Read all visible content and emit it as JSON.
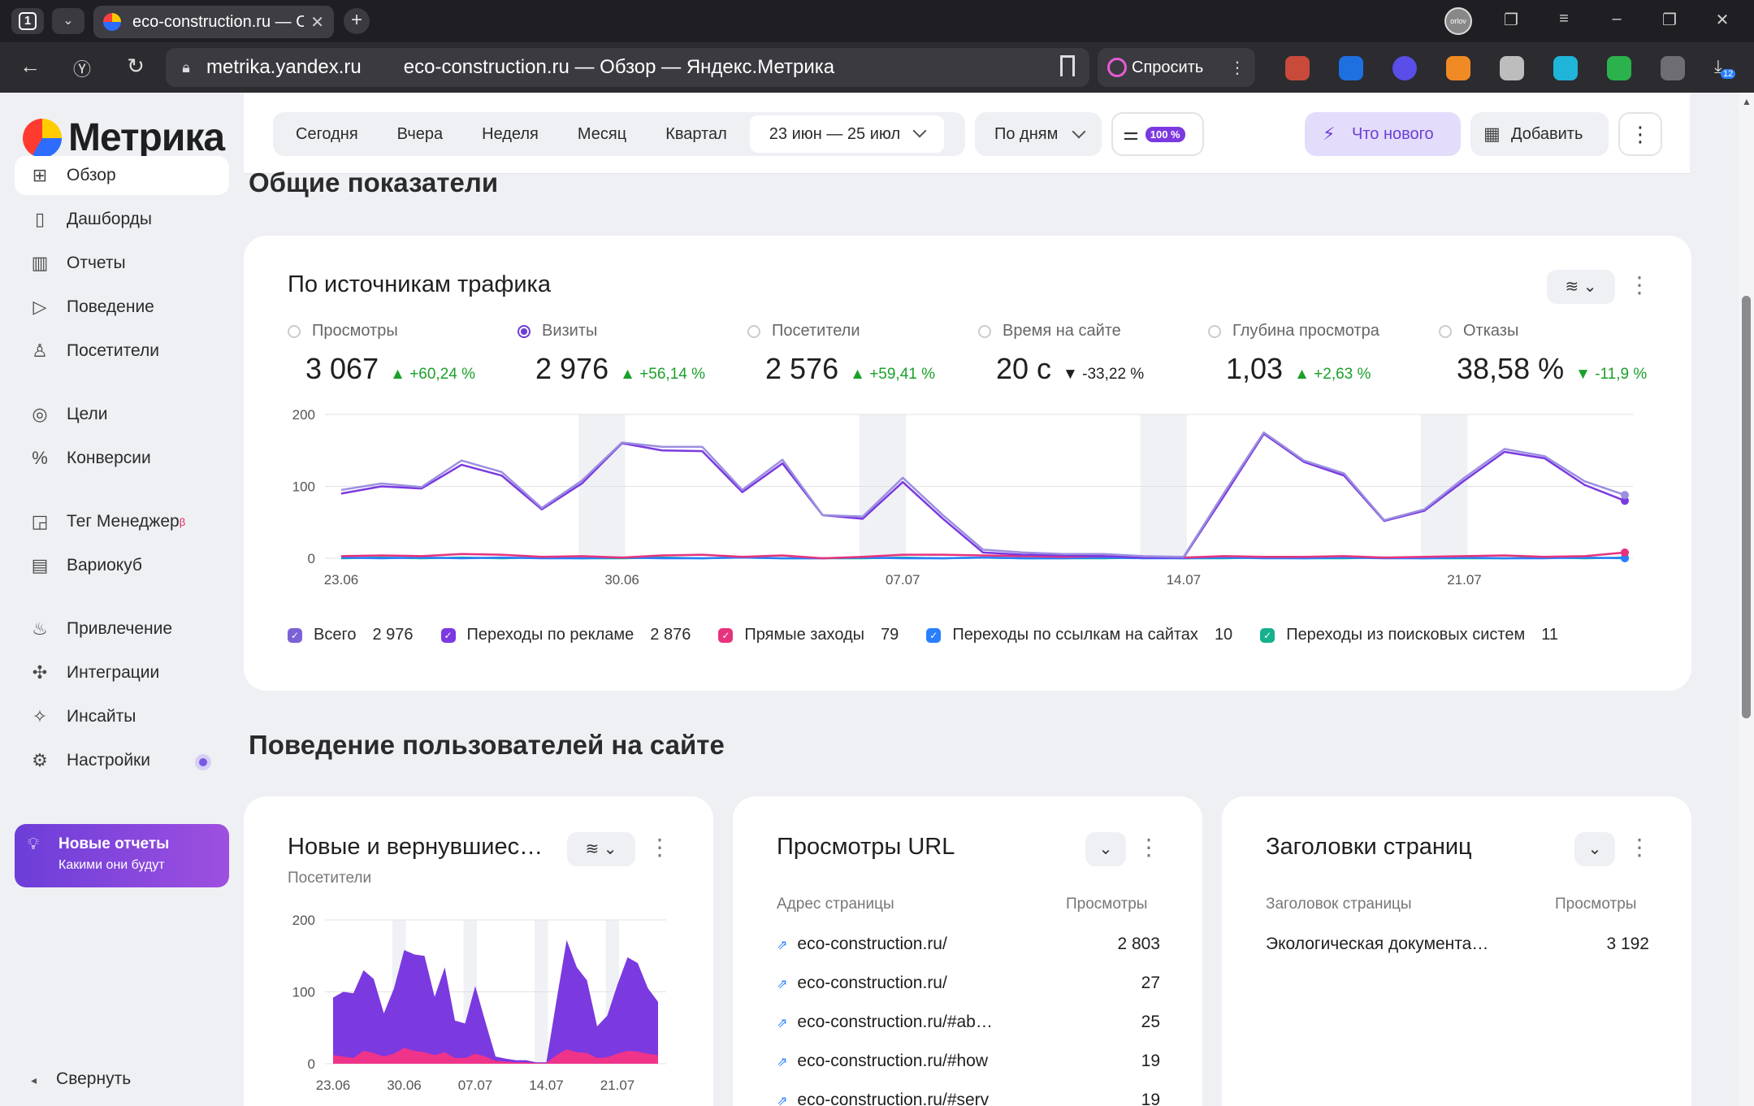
{
  "browser": {
    "tab_count": "1",
    "tab_title": "eco-construction.ru — Обзор — Яндекс.Метрика",
    "tab_close": "✕",
    "new_tab": "+",
    "address_domain": "metrika.yandex.ru",
    "address_title": "eco-construction.ru — Обзор — Яндекс.Метрика",
    "ask_label": "Спросить",
    "profile_name": "orlov",
    "downloads_badge": "12"
  },
  "sidebar": {
    "logo": "Метрика",
    "items": [
      {
        "label": "Обзор",
        "icon": "grid-icon",
        "glyph": "⊞"
      },
      {
        "label": "Дашборды",
        "icon": "dashboard-icon",
        "glyph": "▯"
      },
      {
        "label": "Отчеты",
        "icon": "bar-chart-icon",
        "glyph": "▥"
      },
      {
        "label": "Поведение",
        "icon": "play-icon",
        "glyph": "▷"
      },
      {
        "label": "Посетители",
        "icon": "user-icon",
        "glyph": "♙"
      },
      {
        "label": "Цели",
        "icon": "target-icon",
        "glyph": "◎"
      },
      {
        "label": "Конверсии",
        "icon": "percent-icon",
        "glyph": "%"
      },
      {
        "label": "Тег Менеджер",
        "icon": "tag-manager-icon",
        "glyph": "◲",
        "sup": "β"
      },
      {
        "label": "Вариокуб",
        "icon": "variocube-icon",
        "glyph": "▤"
      },
      {
        "label": "Привлечение",
        "icon": "fire-icon",
        "glyph": "♨"
      },
      {
        "label": "Интеграции",
        "icon": "puzzle-icon",
        "glyph": "✣"
      },
      {
        "label": "Инсайты",
        "icon": "sparkle-icon",
        "glyph": "✧"
      },
      {
        "label": "Настройки",
        "icon": "gear-icon",
        "glyph": "⚙"
      }
    ],
    "promo_title": "Новые отчеты",
    "promo_subtitle": "Какими они будут",
    "collapse": "Свернуть"
  },
  "toolbar": {
    "periods": [
      "Сегодня",
      "Вчера",
      "Неделя",
      "Месяц",
      "Квартал"
    ],
    "date_range": "23 июн — 25 июл",
    "grouping": "По дням",
    "sample_badge": "100 %",
    "whats_new": "Что нового",
    "add": "Добавить"
  },
  "sections": {
    "general": "Общие показатели",
    "behavior": "Поведение пользователей на сайте"
  },
  "traffic": {
    "title": "По источникам трафика",
    "metrics": [
      {
        "label": "Просмотры",
        "value": "3 067",
        "delta": "+60,24 %",
        "dir": "up",
        "selected": false
      },
      {
        "label": "Визиты",
        "value": "2 976",
        "delta": "+56,14 %",
        "dir": "up",
        "selected": true
      },
      {
        "label": "Посетители",
        "value": "2 576",
        "delta": "+59,41 %",
        "dir": "up",
        "selected": false
      },
      {
        "label": "Время на сайте",
        "value": "20 с",
        "delta": "-33,22 %",
        "dir": "down",
        "selected": false
      },
      {
        "label": "Глубина просмотра",
        "value": "1,03",
        "delta": "+2,63 %",
        "dir": "up",
        "selected": false
      },
      {
        "label": "Отказы",
        "value": "38,58 %",
        "delta": "-11,9 %",
        "dir": "up",
        "selected": false
      }
    ],
    "legend": [
      {
        "label": "Всего",
        "value": "2 976",
        "color": "#7b62d6"
      },
      {
        "label": "Переходы по рекламе",
        "value": "2 876",
        "color": "#7b39e0"
      },
      {
        "label": "Прямые заходы",
        "value": "79",
        "color": "#e7327c"
      },
      {
        "label": "Переходы по ссылкам на сайтах",
        "value": "10",
        "color": "#2a7fff"
      },
      {
        "label": "Переходы из поисковых систем",
        "value": "11",
        "color": "#16b18c"
      }
    ]
  },
  "chart_data": [
    {
      "type": "line",
      "title": "По источникам трафика",
      "x": [
        "23.06",
        "24.06",
        "25.06",
        "26.06",
        "27.06",
        "28.06",
        "29.06",
        "30.06",
        "01.07",
        "02.07",
        "03.07",
        "04.07",
        "05.07",
        "06.07",
        "07.07",
        "08.07",
        "09.07",
        "10.07",
        "11.07",
        "12.07",
        "13.07",
        "14.07",
        "15.07",
        "16.07",
        "17.07",
        "18.07",
        "19.07",
        "20.07",
        "21.07",
        "22.07",
        "23.07",
        "24.07",
        "25.07"
      ],
      "xticks": [
        "23.06",
        "30.06",
        "07.07",
        "14.07",
        "21.07"
      ],
      "yticks": [
        0,
        100,
        200
      ],
      "ylim": [
        0,
        200
      ],
      "weekends": [
        [
          6,
          7
        ],
        [
          13,
          14
        ],
        [
          20,
          21
        ],
        [
          27,
          28
        ]
      ],
      "series": [
        {
          "name": "Всего",
          "color": "#9b8fe0",
          "values": [
            95,
            104,
            99,
            136,
            120,
            70,
            108,
            161,
            155,
            155,
            95,
            137,
            60,
            58,
            112,
            60,
            12,
            8,
            6,
            6,
            3,
            2,
            90,
            175,
            136,
            118,
            53,
            68,
            112,
            152,
            142,
            107,
            88
          ]
        },
        {
          "name": "Переходы по рекламе",
          "color": "#7b39e0",
          "values": [
            90,
            100,
            97,
            130,
            115,
            68,
            104,
            160,
            150,
            149,
            92,
            132,
            60,
            55,
            106,
            55,
            8,
            5,
            4,
            3,
            1,
            1,
            86,
            173,
            134,
            115,
            52,
            66,
            108,
            148,
            139,
            102,
            80
          ]
        },
        {
          "name": "Прямые заходы",
          "color": "#e7327c",
          "values": [
            3,
            4,
            3,
            6,
            5,
            2,
            3,
            1,
            4,
            5,
            2,
            4,
            0,
            2,
            5,
            5,
            4,
            3,
            2,
            3,
            2,
            1,
            3,
            2,
            2,
            3,
            1,
            2,
            3,
            4,
            2,
            3,
            8
          ]
        },
        {
          "name": "Переходы по ссылкам на сайтах",
          "color": "#2a7fff",
          "values": [
            1,
            0,
            1,
            0,
            1,
            0,
            0,
            1,
            0,
            0,
            1,
            0,
            0,
            1,
            0,
            0,
            1,
            0,
            0,
            1,
            0,
            0,
            1,
            0,
            0,
            1,
            0,
            0,
            1,
            0,
            0,
            1,
            0
          ]
        },
        {
          "name": "Переходы из поисковых систем",
          "color": "#16b18c",
          "values": [
            0,
            1,
            0,
            1,
            0,
            1,
            0,
            0,
            1,
            0,
            1,
            0,
            0,
            0,
            1,
            0,
            1,
            0,
            0,
            0,
            1,
            0,
            0,
            1,
            0,
            0,
            1,
            0,
            0,
            0,
            1,
            0,
            1
          ]
        }
      ]
    },
    {
      "type": "area",
      "title": "Новые и вернувшиеся посетители",
      "xticks": [
        "23.06",
        "30.06",
        "07.07",
        "14.07",
        "21.07"
      ],
      "yticks": [
        0,
        100,
        200
      ],
      "ylim": [
        0,
        200
      ],
      "series": [
        {
          "name": "Новые",
          "color": "#7b39e0",
          "values": [
            92,
            100,
            98,
            130,
            118,
            70,
            105,
            158,
            152,
            150,
            93,
            134,
            60,
            56,
            108,
            58,
            10,
            7,
            5,
            5,
            2,
            2,
            88,
            172,
            134,
            116,
            52,
            67,
            110,
            148,
            140,
            105,
            86
          ]
        },
        {
          "name": "Вернувшиеся",
          "color": "#f0338a",
          "values": [
            12,
            10,
            8,
            18,
            15,
            10,
            14,
            22,
            18,
            16,
            12,
            16,
            8,
            8,
            14,
            10,
            4,
            3,
            2,
            2,
            1,
            1,
            12,
            20,
            16,
            15,
            8,
            9,
            14,
            18,
            17,
            14,
            12
          ]
        }
      ]
    }
  ],
  "new_vs_returning": {
    "title": "Новые и вернувшиес…",
    "subtitle": "Посетители"
  },
  "url_views": {
    "title": "Просмотры URL",
    "col_address": "Адрес страницы",
    "col_views": "Просмотры",
    "rows": [
      {
        "url": "eco-construction.ru/",
        "views": "2 803"
      },
      {
        "url": "eco-construction.ru/",
        "views": "27"
      },
      {
        "url": "eco-construction.ru/#ab…",
        "views": "25"
      },
      {
        "url": "eco-construction.ru/#how",
        "views": "19"
      },
      {
        "url": "eco-construction.ru/#serv",
        "views": "19"
      }
    ]
  },
  "page_titles": {
    "title": "Заголовки страниц",
    "col_title": "Заголовок страницы",
    "col_views": "Просмотры",
    "rows": [
      {
        "title": "Экологическая документа…",
        "views": "3 192"
      }
    ]
  }
}
